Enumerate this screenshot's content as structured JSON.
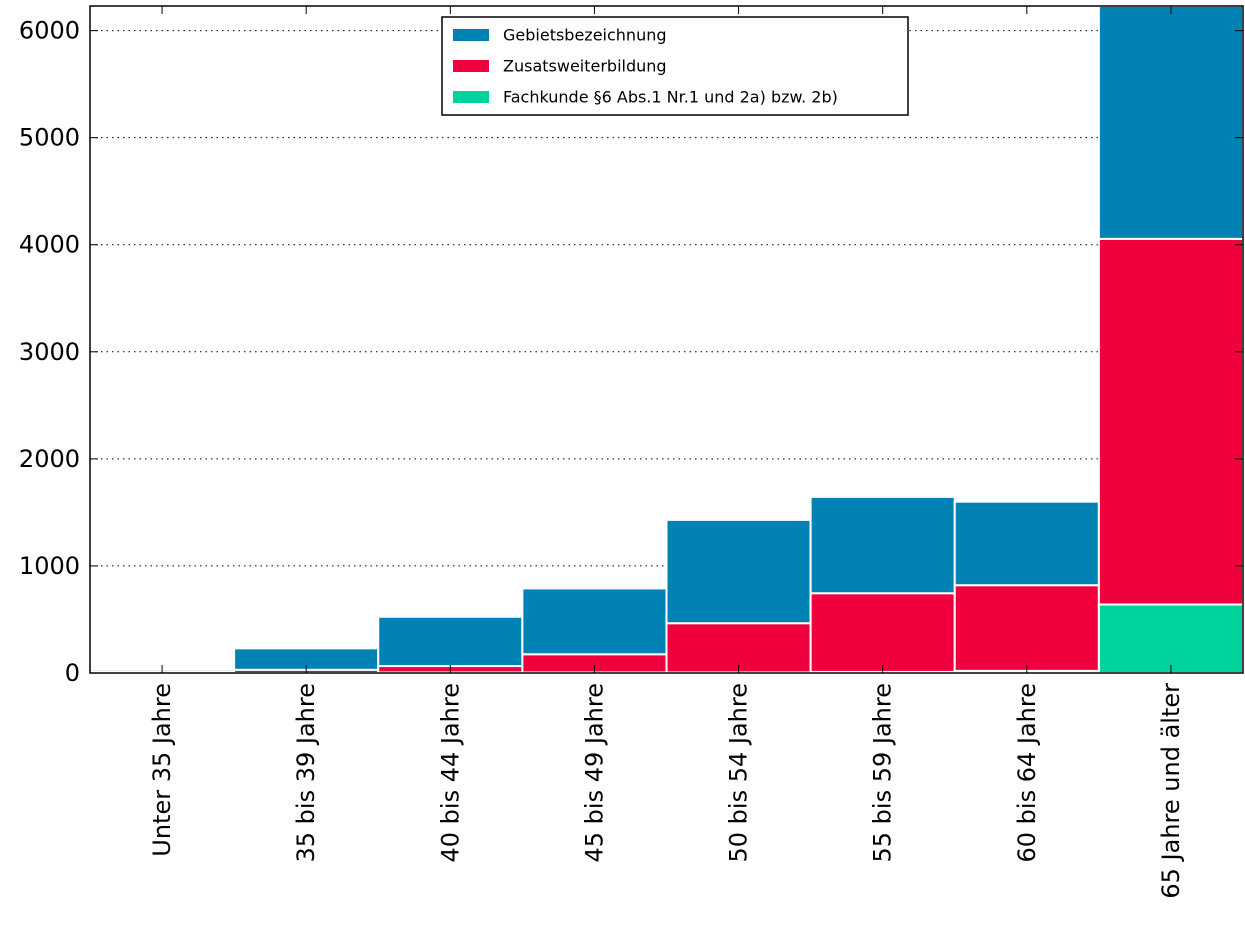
{
  "chart_data": {
    "type": "bar",
    "stacked": true,
    "categories": [
      "Unter 35 Jahre",
      "35 bis 39 Jahre",
      "40 bis 44 Jahre",
      "45 bis 49 Jahre",
      "50 bis 54 Jahre",
      "55 bis 59 Jahre",
      "60 bis 64 Jahre",
      "65 Jahre und älter"
    ],
    "series": [
      {
        "name": "Fachkunde §6 Abs.1 Nr.1 und 2a) bzw. 2b)",
        "color": "#00d29b",
        "values": [
          0,
          0,
          5,
          5,
          5,
          10,
          20,
          640
        ]
      },
      {
        "name": "Zusatsweiterbildung",
        "color": "#f0003c",
        "values": [
          10,
          30,
          60,
          170,
          460,
          735,
          800,
          3415
        ]
      },
      {
        "name": "Gebietsbezeichnung",
        "color": "#0082b4",
        "values": [
          20,
          200,
          460,
          615,
          965,
          900,
          780,
          2175
        ]
      }
    ],
    "yticks": [
      0,
      1000,
      2000,
      3000,
      4000,
      5000,
      6000
    ],
    "ylim": [
      0,
      6230
    ],
    "grid": "y dotted",
    "legend_position": "top-center",
    "legend_order": [
      "Gebietsbezeichnung",
      "Zusatsweiterbildung",
      "Fachkunde §6 Abs.1 Nr.1 und 2a) bzw. 2b)"
    ]
  }
}
